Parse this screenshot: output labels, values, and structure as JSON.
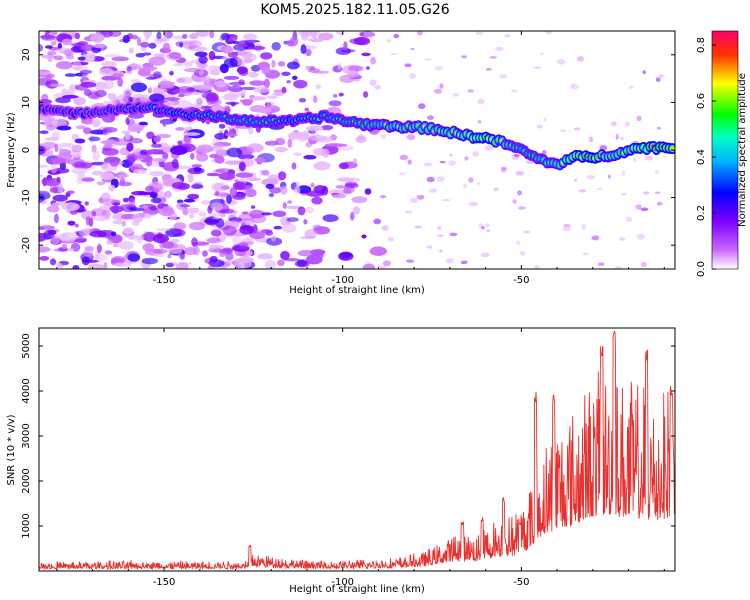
{
  "title": "KOM5.2025.182.11.05.G26",
  "chart_data": [
    {
      "type": "heatmap",
      "xlabel": "Height of straight line (km)",
      "ylabel": "Frequency (Hz)",
      "xlim": [
        -185,
        -7
      ],
      "ylim": [
        -25,
        25
      ],
      "xticks": [
        -150,
        -100,
        -50
      ],
      "yticks": [
        -20,
        -10,
        0,
        10,
        20
      ],
      "grid": false,
      "colorbar": {
        "label": "Normalized spectral amplitude",
        "range": [
          0,
          0.85
        ],
        "ticks": [
          0.0,
          0.2,
          0.4,
          0.6,
          0.8
        ],
        "colors": [
          "#ffffff",
          "#9900ff",
          "#0000ff",
          "#00ccff",
          "#00ff66",
          "#ffff00",
          "#ff0000",
          "#ff0066"
        ]
      },
      "ridge": {
        "x": [
          -185,
          -175,
          -165,
          -155,
          -145,
          -135,
          -125,
          -115,
          -105,
          -95,
          -85,
          -75,
          -65,
          -60,
          -55,
          -50,
          -45,
          -40,
          -35,
          -30,
          -25,
          -20,
          -15,
          -10,
          -7
        ],
        "y": [
          9,
          7.5,
          8.5,
          9,
          7.5,
          7,
          6,
          6,
          7,
          5.5,
          5,
          4.5,
          3,
          2.5,
          1.5,
          0,
          -2,
          -3,
          -1.5,
          -1.5,
          -1,
          0,
          0.5,
          0.5,
          0.5
        ],
        "amplitude": [
          0.3,
          0.3,
          0.32,
          0.35,
          0.38,
          0.42,
          0.45,
          0.4,
          0.42,
          0.48,
          0.55,
          0.55,
          0.62,
          0.7,
          0.55,
          0.45,
          0.5,
          0.55,
          0.68,
          0.72,
          0.6,
          0.65,
          0.7,
          0.72,
          0.7
        ]
      }
    },
    {
      "type": "line",
      "xlabel": "Height of straight line (km)",
      "ylabel": "SNR (10 * v/v)",
      "xlim": [
        -185,
        -7
      ],
      "ylim": [
        0,
        5400
      ],
      "xticks": [
        -150,
        -100,
        -50
      ],
      "yticks": [
        1000,
        2000,
        3000,
        4000,
        5000
      ],
      "grid": false,
      "series": [
        {
          "color": "#e8312f",
          "envelope": {
            "x": [
              -185,
              -160,
              -140,
              -128,
              -125,
              -110,
              -95,
              -85,
              -78,
              -72,
              -68,
              -62,
              -58,
              -52,
              -48,
              -44,
              -40,
              -36,
              -32,
              -28,
              -24,
              -20,
              -16,
              -12,
              -8,
              -7
            ],
            "y": [
              150,
              170,
              160,
              180,
              320,
              170,
              190,
              230,
              320,
              500,
              700,
              650,
              900,
              1050,
              1400,
              2300,
              2700,
              2900,
              3300,
              3600,
              3600,
              3400,
              3400,
              3100,
              3500,
              3600
            ]
          },
          "peaks": [
            {
              "x": -27.5,
              "y": 5150
            },
            {
              "x": -24,
              "y": 5400
            },
            {
              "x": -15,
              "y": 4950
            },
            {
              "x": -46,
              "y": 4050
            },
            {
              "x": -41,
              "y": 4000
            },
            {
              "x": -8,
              "y": 4150
            },
            {
              "x": -55,
              "y": 1650
            },
            {
              "x": -61,
              "y": 1200
            },
            {
              "x": -66.5,
              "y": 1100
            },
            {
              "x": -126,
              "y": 580
            }
          ]
        }
      ]
    }
  ]
}
